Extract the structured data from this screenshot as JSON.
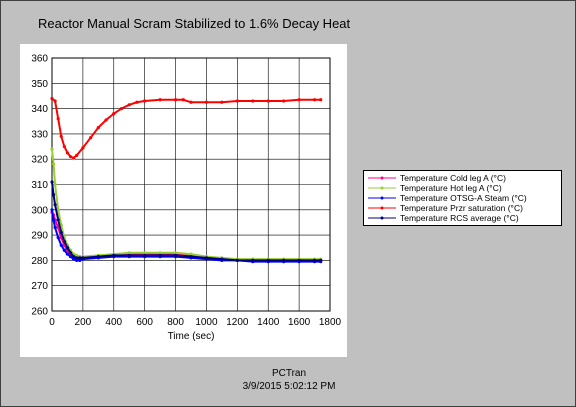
{
  "title": "Reactor Manual Scram Stabilized to 1.6% Decay Heat",
  "footer": {
    "app": "PCTran",
    "timestamp": "3/9/2015 5:02:12 PM"
  },
  "chart_data": {
    "type": "line",
    "title": "Reactor Manual Scram Stabilized to 1.6% Decay Heat",
    "xlabel": "Time (sec)",
    "ylabel": "",
    "xlim": [
      0,
      1800
    ],
    "ylim": [
      260,
      360
    ],
    "xticks": [
      0,
      200,
      400,
      600,
      800,
      1000,
      1200,
      1400,
      1600,
      1800
    ],
    "yticks": [
      260,
      270,
      280,
      290,
      300,
      310,
      320,
      330,
      340,
      350,
      360
    ],
    "grid": true,
    "legend_position": "right",
    "series": [
      {
        "name": "Temperature Cold leg A (°C)",
        "color": "#ff0080",
        "x": [
          0,
          10,
          20,
          40,
          60,
          80,
          100,
          120,
          140,
          160,
          180,
          200,
          300,
          400,
          500,
          600,
          700,
          800,
          900,
          1000,
          1100,
          1200,
          1300,
          1400,
          1500,
          1600,
          1700,
          1740
        ],
        "y": [
          299,
          298,
          296,
          293,
          289,
          286,
          284,
          282,
          281,
          280.5,
          280.5,
          281,
          281.5,
          282,
          282.5,
          282.5,
          282.5,
          282.5,
          282,
          281,
          280.5,
          280,
          280,
          280,
          280,
          280,
          280,
          280
        ]
      },
      {
        "name": "Temperature Hot leg A (°C)",
        "color": "#9acd32",
        "x": [
          0,
          10,
          20,
          40,
          60,
          80,
          100,
          120,
          140,
          160,
          180,
          200,
          300,
          400,
          500,
          600,
          700,
          800,
          900,
          1000,
          1100,
          1200,
          1300,
          1400,
          1500,
          1600,
          1700,
          1740
        ],
        "y": [
          324,
          318,
          310,
          300,
          294,
          289,
          286,
          284,
          282.5,
          282,
          281.5,
          281.5,
          282,
          282.5,
          283,
          283,
          283,
          283,
          282.5,
          281.5,
          281,
          280.5,
          280.5,
          280.5,
          280.5,
          280.5,
          280.5,
          280.5
        ]
      },
      {
        "name": "Temperature OTSG-A Steam (°C)",
        "color": "#0000ff",
        "x": [
          0,
          10,
          20,
          40,
          60,
          80,
          100,
          120,
          140,
          160,
          180,
          200,
          300,
          400,
          500,
          600,
          700,
          800,
          900,
          1000,
          1100,
          1200,
          1300,
          1400,
          1500,
          1600,
          1700,
          1740
        ],
        "y": [
          300,
          296,
          293,
          289,
          286,
          284,
          282.5,
          281.5,
          280.5,
          280,
          280,
          280.5,
          281,
          281.5,
          281.5,
          281.5,
          281.5,
          281.5,
          281,
          280.5,
          280,
          280,
          279.5,
          279.5,
          279.5,
          279.5,
          279.5,
          279.5
        ]
      },
      {
        "name": "Temperature Przr saturation (°C)",
        "color": "#ff0000",
        "x": [
          0,
          20,
          40,
          60,
          80,
          100,
          120,
          140,
          160,
          200,
          250,
          300,
          350,
          400,
          450,
          500,
          550,
          600,
          700,
          800,
          850,
          900,
          1000,
          1100,
          1200,
          1300,
          1400,
          1500,
          1600,
          1700,
          1740
        ],
        "y": [
          344,
          343,
          336,
          329,
          325,
          322.5,
          321,
          320.5,
          321.5,
          324.5,
          328.5,
          332.5,
          335.5,
          338,
          340,
          341.5,
          342.5,
          343,
          343.5,
          343.5,
          343.5,
          342.5,
          342.5,
          342.5,
          343,
          343,
          343,
          343,
          343.5,
          343.5,
          343.5
        ]
      },
      {
        "name": "Temperature RCS average (°C)",
        "color": "#000080",
        "x": [
          0,
          10,
          20,
          40,
          60,
          80,
          100,
          120,
          140,
          160,
          180,
          200,
          300,
          400,
          500,
          600,
          700,
          800,
          900,
          1000,
          1100,
          1200,
          1300,
          1400,
          1500,
          1600,
          1700,
          1740
        ],
        "y": [
          311,
          306,
          302,
          296,
          291,
          287.5,
          285,
          283,
          281.5,
          281,
          281,
          281,
          281.5,
          282,
          282,
          282,
          282,
          282,
          281.5,
          281,
          280.5,
          280,
          280,
          280,
          280,
          280,
          280,
          280
        ]
      }
    ]
  }
}
